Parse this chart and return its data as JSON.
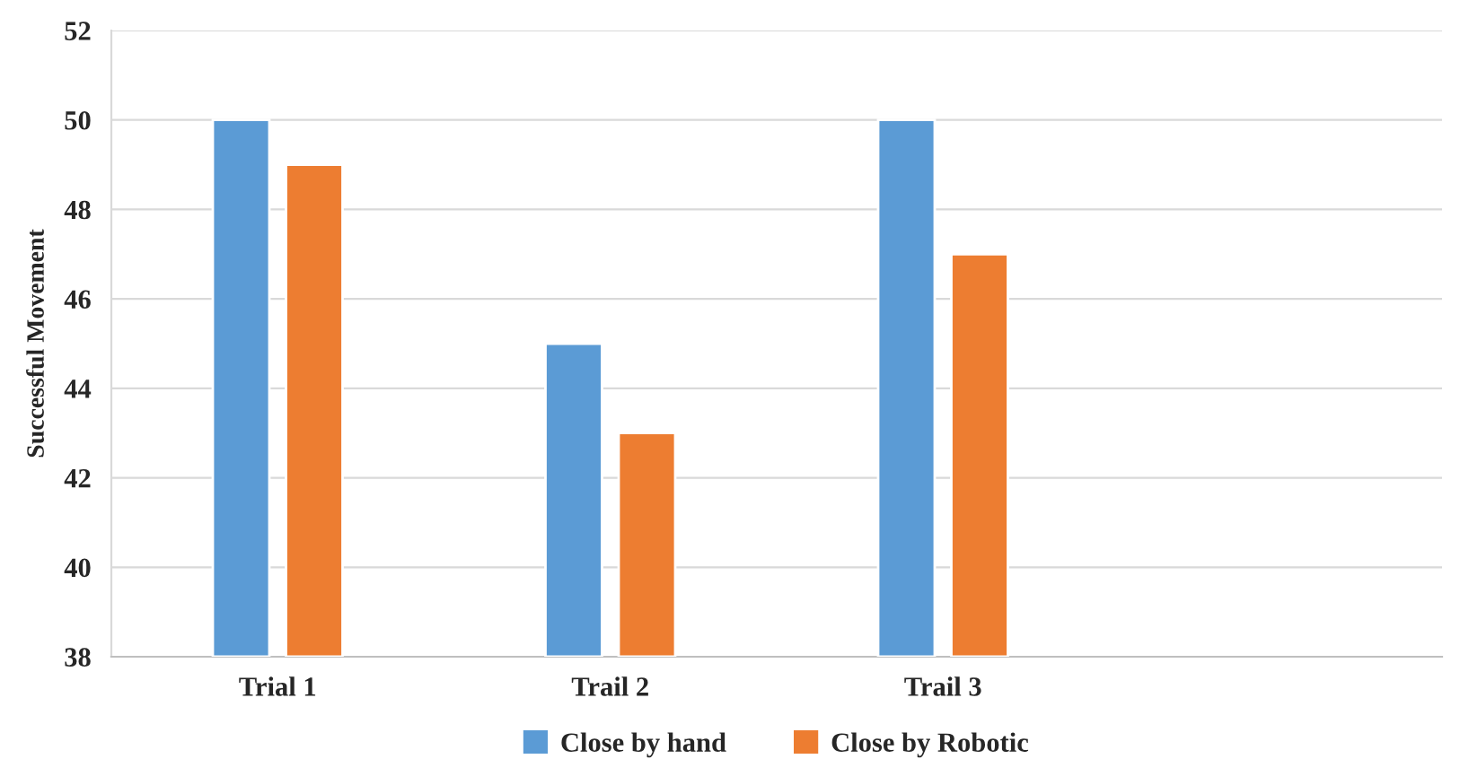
{
  "chart_data": {
    "type": "bar",
    "ylabel": "Successful Movement",
    "categories": [
      "Trial 1",
      "Trail 2",
      "Trail 3",
      null
    ],
    "series": [
      {
        "name": "Close by hand",
        "color": "#5b9bd5",
        "values": [
          50,
          45,
          50,
          null
        ]
      },
      {
        "name": "Close by Robotic",
        "color": "#ed7d31",
        "values": [
          49,
          43,
          47,
          null
        ]
      }
    ],
    "ylim": [
      38,
      52
    ],
    "yticks": [
      38,
      40,
      42,
      44,
      46,
      48,
      50,
      52
    ],
    "grid": "y",
    "legend": "bottom"
  }
}
